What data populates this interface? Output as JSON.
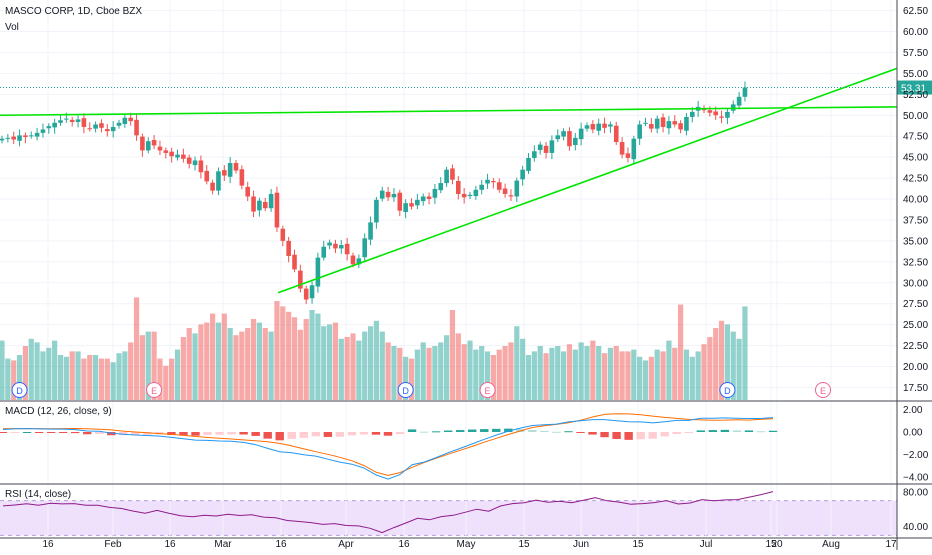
{
  "header": {
    "title": "MASCO CORP, 1D, Cboe BZX",
    "volume_label": "Vol"
  },
  "colors": {
    "up": "#26a69a",
    "down": "#ef5350",
    "trendline": "#00e500",
    "rsi_line": "#8e1b8b",
    "macd_line": "#2196f3",
    "signal_line": "#ff6d00",
    "rsi_band": "#efe0fb",
    "price_tag": "#26a69a",
    "event_dividend": "#2962ff",
    "event_earnings": "#f06292"
  },
  "chart_data": [
    {
      "type": "candlestick",
      "title": "MASCO CORP, 1D, Cboe BZX",
      "y_axis_ticks": [
        "62.50",
        "60.00",
        "57.50",
        "55.00",
        "52.50",
        "50.00",
        "47.50",
        "45.00",
        "42.50",
        "40.00",
        "37.50",
        "35.00",
        "32.50",
        "30.00",
        "27.50",
        "25.00",
        "22.50",
        "20.00",
        "17.50"
      ],
      "ylim": [
        16,
        64
      ],
      "x_axis_ticks": [
        "16",
        "Feb",
        "16",
        "Mar",
        "16",
        "Apr",
        "16",
        "May",
        "15",
        "Jun",
        "15",
        "Jul",
        "15",
        "20",
        "Aug",
        "17"
      ],
      "last_price": "53.31",
      "last_price_value": 53.31,
      "closes": [
        47.2,
        47.3,
        47.1,
        47.6,
        47.4,
        47.6,
        47.9,
        48.3,
        48.7,
        49.1,
        49.4,
        49.6,
        49.2,
        49.5,
        48.6,
        48.4,
        48.9,
        48.5,
        48.1,
        48.6,
        49.1,
        49.7,
        49.3,
        47.6,
        45.8,
        46.9,
        46.4,
        45.8,
        45.5,
        45.1,
        45.3,
        44.8,
        44.2,
        44.6,
        43.2,
        42.1,
        41.0,
        43.3,
        42.8,
        44.3,
        43.4,
        41.6,
        40.3,
        38.5,
        39.8,
        38.9,
        40.6,
        36.6,
        35.0,
        33.2,
        31.6,
        29.3,
        28.0,
        29.7,
        33.0,
        34.3,
        34.8,
        34.1,
        34.5,
        33.4,
        32.2,
        32.9,
        35.3,
        37.2,
        39.9,
        41.0,
        40.2,
        40.6,
        38.6,
        39.5,
        39.1,
        39.9,
        40.3,
        40.0,
        41.2,
        41.9,
        43.5,
        42.3,
        40.6,
        40.2,
        40.5,
        41.1,
        41.7,
        42.3,
        42.0,
        41.1,
        40.6,
        40.3,
        42.2,
        43.5,
        44.9,
        45.7,
        46.5,
        45.5,
        47.0,
        47.6,
        48.1,
        46.3,
        47.3,
        48.4,
        48.8,
        48.3,
        49.0,
        48.5,
        48.9,
        46.8,
        45.3,
        44.9,
        47.2,
        48.9,
        49.1,
        48.4,
        49.6,
        48.6,
        49.3,
        48.9,
        48.3,
        49.8,
        50.4,
        51.0,
        50.6,
        50.3,
        50.0,
        49.7,
        50.4,
        51.3,
        52.2,
        53.31
      ],
      "volume_levels": [
        0.33,
        0.23,
        0.22,
        0.25,
        0.3,
        0.34,
        0.32,
        0.27,
        0.29,
        0.33,
        0.25,
        0.24,
        0.27,
        0.27,
        0.23,
        0.25,
        0.25,
        0.23,
        0.23,
        0.21,
        0.26,
        0.27,
        0.32,
        0.57,
        0.36,
        0.38,
        0.38,
        0.23,
        0.19,
        0.23,
        0.28,
        0.35,
        0.4,
        0.37,
        0.42,
        0.43,
        0.48,
        0.43,
        0.48,
        0.4,
        0.36,
        0.38,
        0.4,
        0.45,
        0.43,
        0.4,
        0.38,
        0.55,
        0.52,
        0.49,
        0.46,
        0.39,
        0.45,
        0.5,
        0.48,
        0.41,
        0.42,
        0.43,
        0.34,
        0.35,
        0.37,
        0.33,
        0.38,
        0.41,
        0.44,
        0.38,
        0.32,
        0.3,
        0.29,
        0.24,
        0.23,
        0.28,
        0.32,
        0.29,
        0.3,
        0.32,
        0.36,
        0.5,
        0.37,
        0.31,
        0.33,
        0.28,
        0.3,
        0.27,
        0.25,
        0.28,
        0.3,
        0.32,
        0.41,
        0.34,
        0.25,
        0.27,
        0.3,
        0.26,
        0.29,
        0.3,
        0.27,
        0.31,
        0.28,
        0.32,
        0.3,
        0.33,
        0.3,
        0.26,
        0.29,
        0.3,
        0.27,
        0.27,
        0.28,
        0.24,
        0.22,
        0.24,
        0.28,
        0.27,
        0.33,
        0.29,
        0.53,
        0.28,
        0.24,
        0.27,
        0.31,
        0.35,
        0.4,
        0.44,
        0.42,
        0.38,
        0.34,
        0.52
      ],
      "trendlines": [
        {
          "x": [
            0,
            133
          ],
          "y": [
            50.0,
            51.0
          ]
        },
        {
          "x": [
            54,
            133
          ],
          "y": [
            28.8,
            55.6
          ]
        }
      ],
      "event_markers": [
        {
          "label": "D",
          "type": "dividend",
          "index": 3
        },
        {
          "label": "E",
          "type": "earnings",
          "index": 26
        },
        {
          "label": "D",
          "type": "dividend",
          "index": 69
        },
        {
          "label": "E",
          "type": "earnings",
          "index": 83
        },
        {
          "label": "D",
          "type": "dividend",
          "index": 124
        },
        {
          "label": "E",
          "type": "earnings",
          "index": 136
        }
      ]
    },
    {
      "type": "macd",
      "title": "MACD (12, 26, close, 9)",
      "y_axis_ticks": [
        "2.00",
        "0.00",
        "−2.00",
        "−4.00"
      ],
      "ylim": [
        -4.6,
        2.6
      ],
      "macd": [
        0.22,
        0.29,
        0.3,
        0.28,
        0.26,
        0.26,
        0.21,
        0.09,
        0.07,
        -0.1,
        -0.2,
        -0.27,
        -0.31,
        -0.36,
        -0.48,
        -0.6,
        -0.72,
        -0.75,
        -0.8,
        -0.83,
        -0.92,
        -1.13,
        -1.46,
        -1.75,
        -1.85,
        -2.02,
        -2.14,
        -2.42,
        -2.68,
        -2.86,
        -3.2,
        -3.81,
        -4.19,
        -3.79,
        -2.91,
        -2.68,
        -2.28,
        -1.84,
        -1.46,
        -1.06,
        -0.65,
        -0.28,
        0.08,
        0.35,
        0.58,
        0.65,
        0.7,
        0.9,
        1.0,
        1.1,
        1.1,
        1.0,
        0.91,
        0.9,
        0.81,
        0.91,
        1.03,
        1.03,
        1.22,
        1.22,
        1.25,
        1.23,
        1.2,
        1.2,
        1.28
      ],
      "signal": [
        0.3,
        0.3,
        0.3,
        0.3,
        0.29,
        0.3,
        0.31,
        0.29,
        0.25,
        0.19,
        0.08,
        0.0,
        -0.06,
        -0.14,
        -0.21,
        -0.3,
        -0.39,
        -0.49,
        -0.56,
        -0.62,
        -0.7,
        -0.78,
        -0.87,
        -1.01,
        -1.24,
        -1.5,
        -1.75,
        -1.98,
        -2.25,
        -2.56,
        -2.98,
        -3.57,
        -3.86,
        -3.61,
        -3.14,
        -2.71,
        -2.34,
        -1.97,
        -1.63,
        -1.28,
        -0.91,
        -0.56,
        -0.22,
        0.09,
        0.4,
        0.55,
        0.68,
        0.83,
        1.04,
        1.33,
        1.56,
        1.62,
        1.61,
        1.54,
        1.41,
        1.3,
        1.21,
        1.12,
        1.08,
        1.05,
        1.06,
        1.09,
        1.06,
        1.13,
        1.17
      ],
      "histogram": [
        -0.08,
        -0.01,
        0.0,
        -0.02,
        -0.03,
        -0.04,
        -0.1,
        -0.2,
        -0.18,
        -0.29,
        -0.28,
        -0.27,
        -0.25,
        -0.22,
        -0.27,
        -0.3,
        -0.33,
        -0.26,
        -0.24,
        -0.21,
        -0.22,
        -0.35,
        -0.59,
        -0.74,
        -0.61,
        -0.52,
        -0.39,
        -0.44,
        -0.43,
        -0.3,
        -0.22,
        -0.24,
        -0.33,
        -0.18,
        0.23,
        0.03,
        0.06,
        0.13,
        0.17,
        0.22,
        0.26,
        0.28,
        0.3,
        0.26,
        0.18,
        0.1,
        0.02,
        0.07,
        -0.04,
        -0.23,
        -0.46,
        -0.62,
        -0.7,
        -0.64,
        -0.6,
        -0.39,
        -0.18,
        -0.09,
        0.14,
        0.17,
        0.19,
        0.14,
        0.14,
        0.07,
        0.11
      ]
    },
    {
      "type": "rsi",
      "title": "RSI (14, close)",
      "y_axis_ticks": [
        "80.00",
        "40.00"
      ],
      "ylim": [
        27,
        88
      ],
      "band": [
        30,
        70
      ],
      "values": [
        64.0,
        65.0,
        66.4,
        64.8,
        67.1,
        66.3,
        66.6,
        64.7,
        64.7,
        62.2,
        60.9,
        58.0,
        55.6,
        58.8,
        55.6,
        52.7,
        51.4,
        53.2,
        52.3,
        54.3,
        52.9,
        53.7,
        51.1,
        50.2,
        47.1,
        46.0,
        44.7,
        42.6,
        43.6,
        41.4,
        40.9,
        38.2,
        33.2,
        39.0,
        44.3,
        49.7,
        47.9,
        51.6,
        53.1,
        56.6,
        60.2,
        57.9,
        63.8,
        66.6,
        67.5,
        70.6,
        68.2,
        69.3,
        67.5,
        70.4,
        73.4,
        69.8,
        68.3,
        65.9,
        66.6,
        67.7,
        70.1,
        66.1,
        67.3,
        71.2,
        69.9,
        70.8,
        71.2,
        74.1,
        76.9,
        80.4
      ]
    }
  ]
}
